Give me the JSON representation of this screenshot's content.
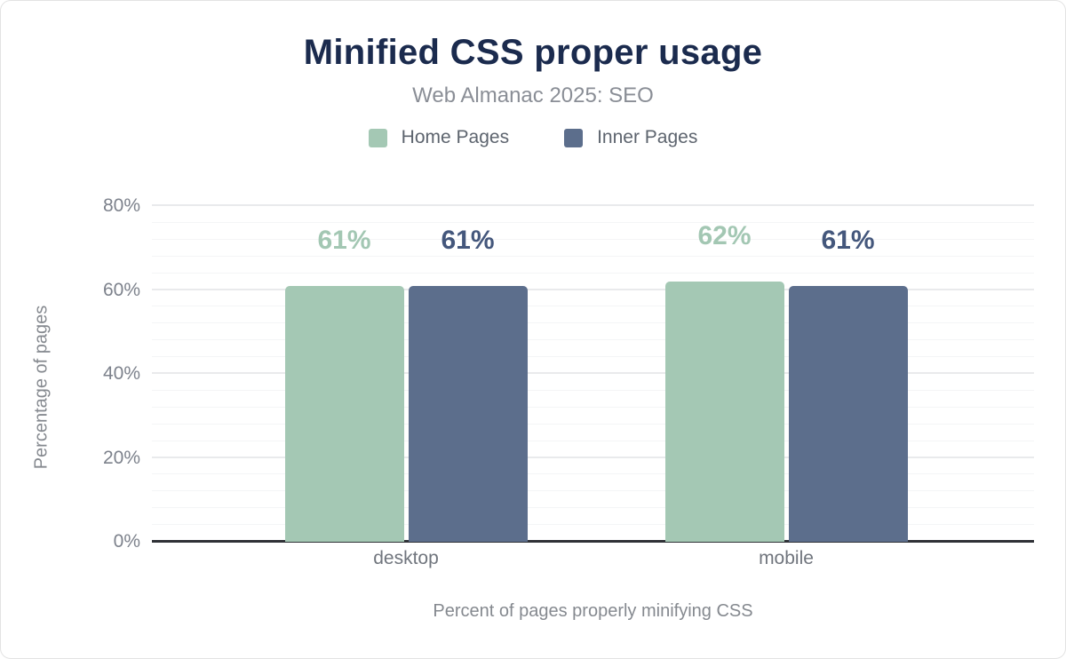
{
  "chart_data": {
    "type": "bar",
    "title": "Minified CSS proper usage",
    "subtitle": "Web Almanac 2025: SEO",
    "xlabel": "Percent of pages properly minifying CSS",
    "ylabel": "Percentage of pages",
    "categories": [
      "desktop",
      "mobile"
    ],
    "series": [
      {
        "name": "Home Pages",
        "color": "#a4c8b4",
        "label_color": "#a3c7b3",
        "values": [
          61,
          62
        ],
        "labels": [
          "61%",
          "62%"
        ]
      },
      {
        "name": "Inner Pages",
        "color": "#5c6e8c",
        "label_color": "#44577c",
        "values": [
          61,
          61
        ],
        "labels": [
          "61%",
          "61%"
        ]
      }
    ],
    "ylim": [
      0,
      80
    ],
    "yticks": [
      "0%",
      "20%",
      "40%",
      "60%",
      "80%"
    ],
    "grid": {
      "minor_step_pct": 4,
      "major_step_pct": 20
    },
    "legend_position": "top",
    "axis_line_color": "#2f3136"
  }
}
